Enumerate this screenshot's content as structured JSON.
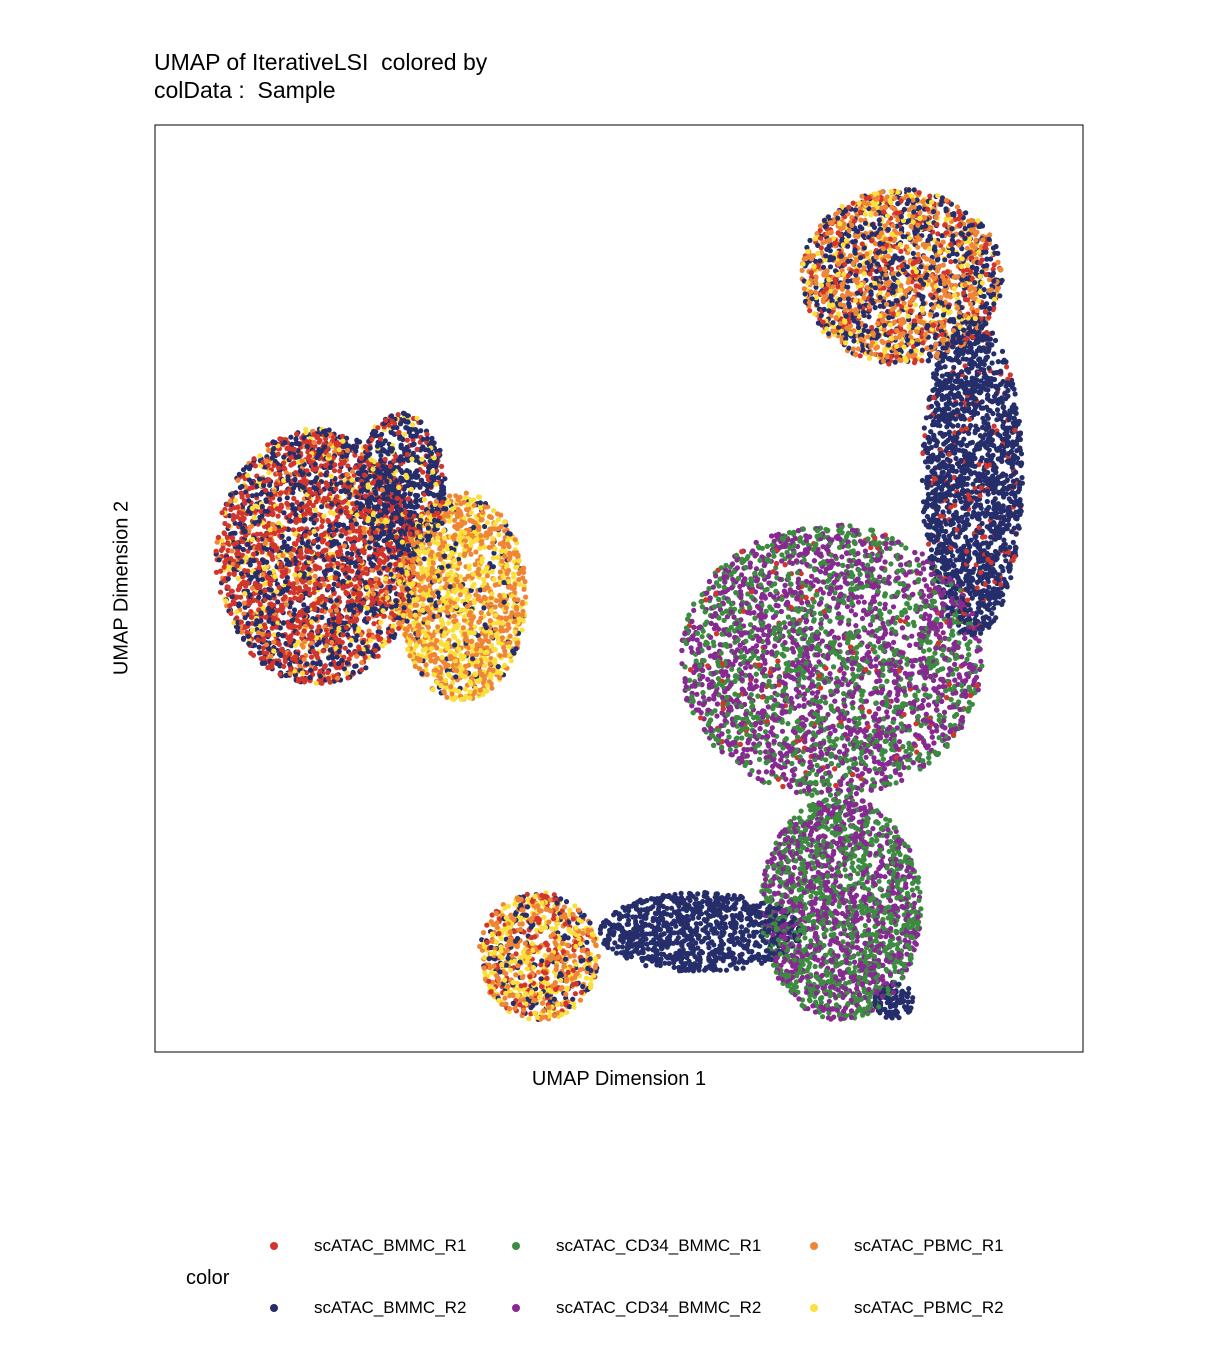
{
  "chart_data": {
    "type": "scatter",
    "title_lines": [
      "UMAP of IterativeLSI  colored by",
      "colData :  Sample"
    ],
    "xlabel": "UMAP Dimension 1",
    "ylabel": "UMAP Dimension 2",
    "grid": false,
    "legend": {
      "title": "color",
      "position": "bottom",
      "entries": [
        {
          "name": "scATAC_BMMC_R1",
          "color": "#d2352b"
        },
        {
          "name": "scATAC_CD34_BMMC_R1",
          "color": "#3c8b40"
        },
        {
          "name": "scATAC_PBMC_R1",
          "color": "#ef8636"
        },
        {
          "name": "scATAC_BMMC_R2",
          "color": "#252e6b"
        },
        {
          "name": "scATAC_CD34_BMMC_R2",
          "color": "#862a91"
        },
        {
          "name": "scATAC_PBMC_R2",
          "color": "#fbe03c"
        }
      ]
    },
    "clusters": [
      {
        "name": "left-cluster-core",
        "x": [
          -10.5,
          -5.5
        ],
        "y": [
          -1.5,
          6.5
        ],
        "mix": {
          "scATAC_BMMC_R1": 0.45,
          "scATAC_BMMC_R2": 0.35,
          "scATAC_PBMC_R2": 0.1,
          "scATAC_PBMC_R1": 0.1
        }
      },
      {
        "name": "left-cluster-upper-right",
        "x": [
          -7,
          -4.8
        ],
        "y": [
          2.5,
          7
        ],
        "mix": {
          "scATAC_BMMC_R2": 0.7,
          "scATAC_BMMC_R1": 0.2,
          "scATAC_PBMC_R2": 0.1
        }
      },
      {
        "name": "left-cluster-right",
        "x": [
          -6,
          -2.8
        ],
        "y": [
          -2,
          4.5
        ],
        "mix": {
          "scATAC_PBMC_R1": 0.45,
          "scATAC_PBMC_R2": 0.45,
          "scATAC_BMMC_R2": 0.1
        }
      },
      {
        "name": "right-top",
        "x": [
          4,
          9
        ],
        "y": [
          8.5,
          14
        ],
        "mix": {
          "scATAC_PBMC_R1": 0.35,
          "scATAC_BMMC_R2": 0.35,
          "scATAC_BMMC_R1": 0.15,
          "scATAC_PBMC_R2": 0.15
        }
      },
      {
        "name": "right-band",
        "x": [
          7,
          9.5
        ],
        "y": [
          0,
          10
        ],
        "mix": {
          "scATAC_BMMC_R2": 0.9,
          "scATAC_BMMC_R1": 0.1
        }
      },
      {
        "name": "right-body",
        "x": [
          1,
          8.5
        ],
        "y": [
          -5,
          3.5
        ],
        "mix": {
          "scATAC_CD34_BMMC_R2": 0.5,
          "scATAC_CD34_BMMC_R1": 0.45,
          "scATAC_BMMC_R1": 0.05
        }
      },
      {
        "name": "bottom-left-cluster",
        "x": [
          -4,
          -1
        ],
        "y": [
          -12,
          -8
        ],
        "mix": {
          "scATAC_PBMC_R1": 0.3,
          "scATAC_PBMC_R2": 0.3,
          "scATAC_BMMC_R1": 0.2,
          "scATAC_BMMC_R2": 0.2
        }
      },
      {
        "name": "bottom-bridge",
        "x": [
          -1,
          4
        ],
        "y": [
          -10.5,
          -8
        ],
        "mix": {
          "scATAC_BMMC_R2": 1.0
        }
      },
      {
        "name": "bottom-right-legs",
        "x": [
          3,
          7
        ],
        "y": [
          -12,
          -5
        ],
        "mix": {
          "scATAC_CD34_BMMC_R1": 0.5,
          "scATAC_CD34_BMMC_R2": 0.5
        }
      },
      {
        "name": "bottom-small-blob",
        "x": [
          5.8,
          6.8
        ],
        "y": [
          -12,
          -10.8
        ],
        "mix": {
          "scATAC_BMMC_R2": 1.0
        }
      }
    ]
  }
}
